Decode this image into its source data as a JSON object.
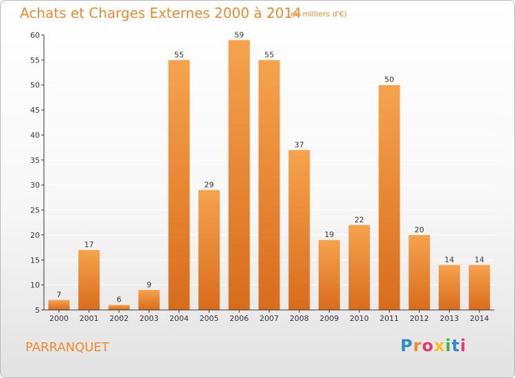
{
  "header": {
    "title": "Achats et Charges Externes 2000 à 2014",
    "subtitle": "(en milliers d'€)"
  },
  "footer": {
    "commune": "PARRANQUET",
    "logo_text": "Proxiti"
  },
  "colors": {
    "title": "#f08a2c",
    "bar_light": "#f6a34e",
    "bar_dark": "#d86c1c",
    "axis": "#333333",
    "grid": "#ffffff"
  },
  "chart_data": {
    "type": "bar",
    "title": "Achats et Charges Externes 2000 à 2014",
    "subtitle": "(en milliers d'€)",
    "categories": [
      "2000",
      "2001",
      "2002",
      "2003",
      "2004",
      "2005",
      "2006",
      "2007",
      "2008",
      "2009",
      "2010",
      "2011",
      "2012",
      "2013",
      "2014"
    ],
    "values": [
      7,
      17,
      6,
      9,
      55,
      29,
      59,
      55,
      37,
      19,
      22,
      50,
      20,
      14,
      14
    ],
    "ylim": [
      5,
      60
    ],
    "yticks": [
      5,
      10,
      15,
      20,
      25,
      30,
      35,
      40,
      45,
      50,
      55,
      60
    ],
    "xlabel": "",
    "ylabel": "",
    "grid": true
  }
}
